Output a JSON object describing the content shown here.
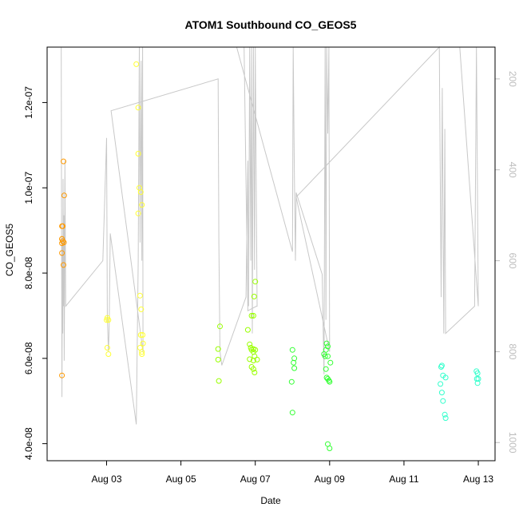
{
  "chart_data": {
    "type": "scatter",
    "title": "ATOM1 Southbound CO_GEOS5",
    "xlabel": "Date",
    "ylabel": "CO_GEOS5",
    "x_unit": "days in August (day-of-month, fractional)",
    "xlim": [
      1.4,
      13.45
    ],
    "ylim": [
      3.6e-08,
      1.33e-07
    ],
    "x_ticks": [
      3,
      5,
      7,
      9,
      11,
      13
    ],
    "x_tick_labels": [
      "Aug 03",
      "Aug 05",
      "Aug 07",
      "Aug 09",
      "Aug 11",
      "Aug 13"
    ],
    "y_ticks": [
      4e-08,
      6e-08,
      8e-08,
      1e-07,
      1.2e-07
    ],
    "y_tick_labels": [
      "4.0e-08",
      "6.0e-08",
      "8.0e-08",
      "1.0e-07",
      "1.2e-07"
    ],
    "right_axis": {
      "label": "",
      "ticks": [
        200,
        400,
        600,
        800,
        1000
      ],
      "tick_labels": [
        "200",
        "400",
        "600",
        "800",
        "1000"
      ],
      "range": [
        130,
        1040
      ],
      "inverted": true,
      "color": "#bdbdbd"
    },
    "grid": false,
    "series": [
      {
        "color": "#FF9900",
        "points": [
          [
            1.8,
            5.6e-08
          ],
          [
            1.82,
            8.75e-08
          ],
          [
            1.8,
            8.8e-08
          ],
          [
            1.8,
            8.7e-08
          ],
          [
            1.8,
            8.8e-08
          ],
          [
            1.82,
            9.1e-08
          ],
          [
            1.8,
            8.47e-08
          ],
          [
            1.84,
            8.19e-08
          ],
          [
            1.85,
            8.72e-08
          ],
          [
            1.86,
            9.82e-08
          ],
          [
            1.84,
            1.062e-07
          ],
          [
            1.8,
            9.1e-08
          ]
        ]
      },
      {
        "color": "#FFFF33",
        "points": [
          [
            3.0,
            6.9e-08
          ],
          [
            3.02,
            6.95e-08
          ],
          [
            3.05,
            6.9e-08
          ],
          [
            3.02,
            6.25e-08
          ],
          [
            3.05,
            6.1e-08
          ],
          [
            3.8,
            1.29e-07
          ],
          [
            3.85,
            1.188e-07
          ],
          [
            3.85,
            1.08e-07
          ],
          [
            3.85,
            9.4e-08
          ],
          [
            3.88,
            1e-07
          ],
          [
            3.92,
            9.9e-08
          ],
          [
            3.95,
            9.6e-08
          ],
          [
            3.9,
            7.47e-08
          ],
          [
            3.93,
            7.15e-08
          ],
          [
            3.92,
            6.55e-08
          ],
          [
            3.97,
            6.55e-08
          ],
          [
            3.9,
            6.25e-08
          ],
          [
            3.95,
            6.15e-08
          ],
          [
            3.95,
            6.1e-08
          ],
          [
            3.98,
            6.35e-08
          ]
        ]
      },
      {
        "color": "#99FF00",
        "points": [
          [
            6.05,
            6.75e-08
          ],
          [
            6.0,
            6.22e-08
          ],
          [
            6.0,
            5.97e-08
          ],
          [
            6.02,
            5.47e-08
          ],
          [
            6.8,
            6.67e-08
          ],
          [
            6.85,
            6.33e-08
          ],
          [
            6.88,
            6.25e-08
          ],
          [
            6.9,
            6.2e-08
          ],
          [
            6.95,
            6.22e-08
          ],
          [
            7.0,
            6.2e-08
          ],
          [
            6.95,
            6.15e-08
          ],
          [
            6.85,
            5.98e-08
          ],
          [
            6.95,
            5.95e-08
          ],
          [
            6.98,
            6.05e-08
          ],
          [
            7.05,
            5.97e-08
          ],
          [
            6.9,
            5.8e-08
          ],
          [
            6.95,
            5.75e-08
          ],
          [
            6.98,
            5.67e-08
          ],
          [
            6.9,
            7e-08
          ],
          [
            6.95,
            7e-08
          ],
          [
            6.97,
            7.45e-08
          ],
          [
            7.0,
            7.8e-08
          ]
        ]
      },
      {
        "color": "#33FF33",
        "points": [
          [
            8.0,
            6.2e-08
          ],
          [
            8.05,
            6e-08
          ],
          [
            8.03,
            5.9e-08
          ],
          [
            8.05,
            5.77e-08
          ],
          [
            7.98,
            5.45e-08
          ],
          [
            8.0,
            4.73e-08
          ],
          [
            8.85,
            6.1e-08
          ],
          [
            8.88,
            6.05e-08
          ],
          [
            8.92,
            6.35e-08
          ],
          [
            8.95,
            6.28e-08
          ],
          [
            8.9,
            6.2e-08
          ],
          [
            8.95,
            6.05e-08
          ],
          [
            9.02,
            5.9e-08
          ],
          [
            8.9,
            5.75e-08
          ],
          [
            8.92,
            5.55e-08
          ],
          [
            8.95,
            5.52e-08
          ],
          [
            9.0,
            5.45e-08
          ],
          [
            8.98,
            5.48e-08
          ],
          [
            8.95,
            3.99e-08
          ],
          [
            9.0,
            3.89e-08
          ]
        ]
      },
      {
        "color": "#33FFCC",
        "points": [
          [
            12.0,
            5.8e-08
          ],
          [
            12.02,
            5.83e-08
          ],
          [
            12.05,
            5.6e-08
          ],
          [
            12.12,
            5.55e-08
          ],
          [
            11.98,
            5.4e-08
          ],
          [
            12.02,
            5.2e-08
          ],
          [
            12.05,
            5e-08
          ],
          [
            12.1,
            4.68e-08
          ],
          [
            12.12,
            4.6e-08
          ],
          [
            12.95,
            5.7e-08
          ],
          [
            12.98,
            5.65e-08
          ],
          [
            12.96,
            5.52e-08
          ],
          [
            13.0,
            5.52e-08
          ],
          [
            12.98,
            5.42e-08
          ]
        ]
      }
    ],
    "pressure_line": {
      "color": "#c8c8c8",
      "unit": "right axis",
      "points": [
        [
          1.78,
          130
        ],
        [
          1.79,
          600
        ],
        [
          1.8,
          900
        ],
        [
          1.81,
          550
        ],
        [
          1.82,
          760
        ],
        [
          1.83,
          420
        ],
        [
          1.84,
          700
        ],
        [
          1.85,
          500
        ],
        [
          1.86,
          820
        ],
        [
          1.87,
          660
        ],
        [
          1.88,
          380
        ],
        [
          1.9,
          700
        ],
        [
          2.9,
          600
        ],
        [
          3.0,
          330
        ],
        [
          3.02,
          720
        ],
        [
          3.05,
          800
        ],
        [
          3.07,
          750
        ],
        [
          3.1,
          540
        ],
        [
          3.8,
          960
        ],
        [
          3.85,
          600
        ],
        [
          3.88,
          130
        ],
        [
          3.9,
          560
        ],
        [
          3.93,
          160
        ],
        [
          3.95,
          600
        ],
        [
          3.97,
          130
        ],
        [
          3.98,
          800
        ],
        [
          3.12,
          270
        ],
        [
          6.0,
          200
        ],
        [
          6.02,
          560
        ],
        [
          6.05,
          800
        ],
        [
          6.1,
          830
        ],
        [
          6.75,
          680
        ],
        [
          6.8,
          380
        ],
        [
          6.82,
          700
        ],
        [
          6.85,
          130
        ],
        [
          6.88,
          600
        ],
        [
          6.9,
          130
        ],
        [
          6.92,
          760
        ],
        [
          6.95,
          130
        ],
        [
          6.98,
          620
        ],
        [
          7.0,
          130
        ],
        [
          7.05,
          700
        ],
        [
          7.03,
          700
        ],
        [
          6.8,
          710
        ],
        [
          6.7,
          90
        ],
        [
          6.5,
          130
        ],
        [
          8.0,
          580
        ],
        [
          8.02,
          130
        ],
        [
          8.05,
          400
        ],
        [
          8.08,
          600
        ],
        [
          8.1,
          450
        ],
        [
          8.8,
          630
        ],
        [
          8.85,
          850
        ],
        [
          8.88,
          130
        ],
        [
          8.9,
          730
        ],
        [
          8.92,
          130
        ],
        [
          8.95,
          320
        ],
        [
          8.98,
          130
        ],
        [
          9.0,
          800
        ],
        [
          8.1,
          460
        ],
        [
          11.95,
          130
        ],
        [
          12.0,
          680
        ],
        [
          12.03,
          220
        ],
        [
          12.07,
          760
        ],
        [
          12.1,
          310
        ],
        [
          12.12,
          760
        ],
        [
          12.9,
          700
        ],
        [
          12.95,
          130
        ],
        [
          13.0,
          700
        ],
        [
          12.5,
          130
        ]
      ]
    }
  }
}
